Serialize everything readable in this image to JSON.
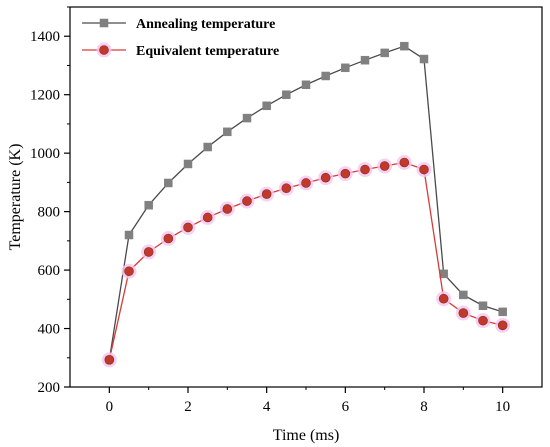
{
  "chart_data": {
    "type": "line",
    "xlabel": "Time (ms)",
    "ylabel": "Temperature (K)",
    "xlim": [
      -1,
      11
    ],
    "ylim": [
      200,
      1500
    ],
    "xticks": [
      0,
      2,
      4,
      6,
      8,
      10
    ],
    "yticks": [
      200,
      400,
      600,
      800,
      1000,
      1200,
      1400
    ],
    "grid": false,
    "legend_position": "top-left",
    "x": [
      0,
      0.5,
      1,
      1.5,
      2,
      2.5,
      3,
      3.5,
      4,
      4.5,
      5,
      5.5,
      6,
      6.5,
      7,
      7.5,
      8,
      8.5,
      9,
      9.5,
      10
    ],
    "series": [
      {
        "name": "Annealing temperature",
        "marker": "square",
        "line_color": "#4a4a4a",
        "marker_color": "#808080",
        "values": [
          293,
          720,
          822,
          898,
          963,
          1021,
          1073,
          1120,
          1162,
          1200,
          1234,
          1264,
          1292,
          1318,
          1343,
          1366,
          1322,
          587,
          515,
          478,
          457
        ]
      },
      {
        "name": "Equivalent temperature",
        "marker": "circle",
        "line_color": "#d93a3a",
        "marker_color": "#c0392b",
        "marker_halo": "#f4c6f0",
        "values": [
          293,
          596,
          662,
          708,
          746,
          780,
          809,
          836,
          860,
          880,
          898,
          916,
          930,
          944,
          956,
          968,
          944,
          502,
          453,
          427,
          411
        ]
      }
    ]
  }
}
